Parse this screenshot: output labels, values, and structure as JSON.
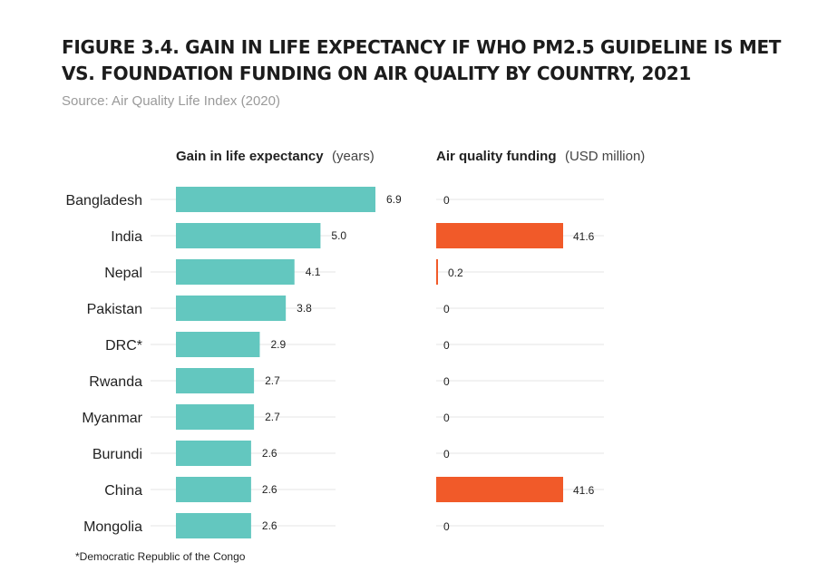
{
  "title": "Figure 3.4.  Gain in life expectancy if WHO PM2.5 guideline is met vs. foundation funding on air quality by country, 2021",
  "source": "Source: Air Quality Life Index (2020)",
  "footnote": "*Democratic Republic of the Congo",
  "colors": {
    "left_bar": "#63c7bf",
    "right_bar": "#f15a29",
    "grid": "#e6e6e6"
  },
  "chart_data": {
    "type": "bar",
    "orientation": "horizontal",
    "categories": [
      "Bangladesh",
      "India",
      "Nepal",
      "Pakistan",
      "DRC*",
      "Rwanda",
      "Myanmar",
      "Burundi",
      "China",
      "Mongolia"
    ],
    "series": [
      {
        "name": "Gain in life expectancy",
        "unit": "(years)",
        "values": [
          6.9,
          5.0,
          4.1,
          3.8,
          2.9,
          2.7,
          2.7,
          2.6,
          2.6,
          2.6
        ],
        "labels": [
          "6.9",
          "5.0",
          "4.1",
          "3.8",
          "2.9",
          "2.7",
          "2.7",
          "2.6",
          "2.6",
          "2.6"
        ]
      },
      {
        "name": "Air quality funding",
        "unit": "(USD million)",
        "values": [
          0,
          41.6,
          0.2,
          0,
          0,
          0,
          0,
          0,
          41.6,
          0
        ],
        "labels": [
          "0",
          "41.6",
          "0.2",
          "0",
          "0",
          "0",
          "0",
          "0",
          "41.6",
          "0"
        ]
      }
    ],
    "legend": "none",
    "grid": true
  }
}
